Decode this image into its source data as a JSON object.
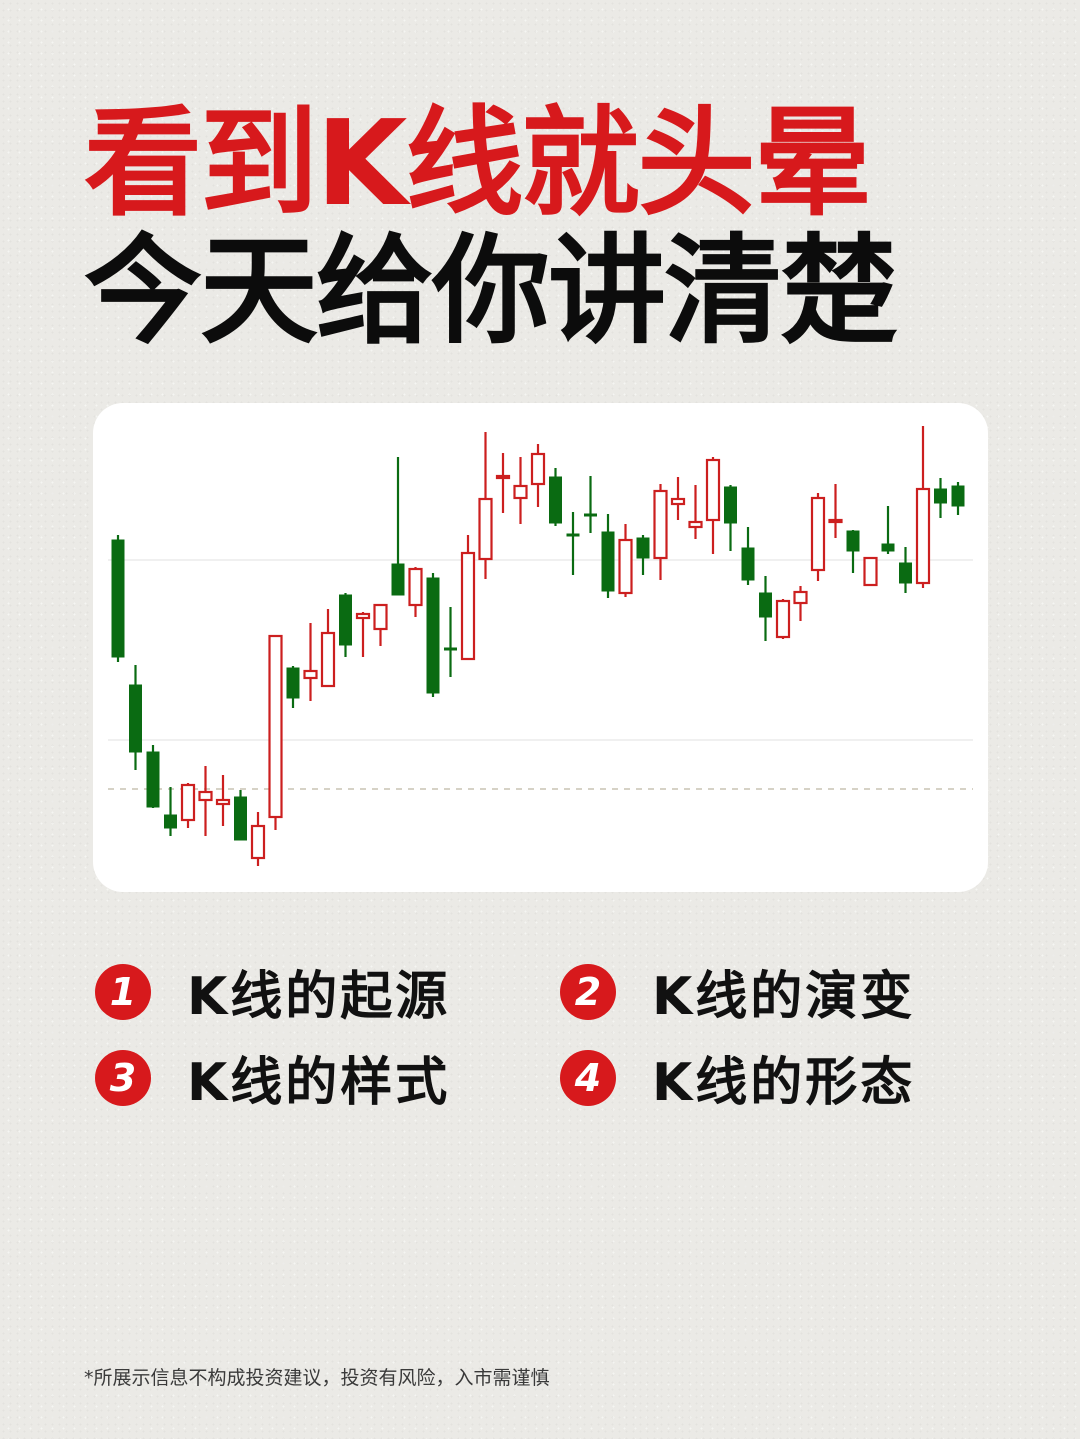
{
  "title": {
    "line1": "看到K线就头晕",
    "line2": "今天给你讲清楚"
  },
  "colors": {
    "accent_red": "#d7191c",
    "up": "#cc1f1f",
    "down": "#0a6b12",
    "text": "#0c0c0c"
  },
  "topics": [
    {
      "number": "1",
      "label": "K线的起源"
    },
    {
      "number": "2",
      "label": "K线的演变"
    },
    {
      "number": "3",
      "label": "K线的样式"
    },
    {
      "number": "4",
      "label": "K线的形态"
    }
  ],
  "footer": "*所展示信息不构成投资建议，投资有风险，入市需谨慎",
  "chart_data": {
    "type": "candlestick",
    "title": "",
    "xlabel": "",
    "ylabel": "",
    "axes_visible": false,
    "grid": "horizontal",
    "reference_line": "dashed",
    "up_style": "hollow red",
    "down_style": "filled green",
    "candles": [
      {
        "o": 36.0,
        "h": 36.5,
        "l": 23.8,
        "c": 24.3
      },
      {
        "o": 21.5,
        "h": 23.5,
        "l": 13.0,
        "c": 14.8
      },
      {
        "o": 14.8,
        "h": 15.5,
        "l": 9.2,
        "c": 9.3
      },
      {
        "o": 8.5,
        "h": 11.3,
        "l": 6.4,
        "c": 7.2
      },
      {
        "o": 8.0,
        "h": 11.7,
        "l": 7.2,
        "c": 11.5
      },
      {
        "o": 10.0,
        "h": 13.4,
        "l": 6.4,
        "c": 10.8
      },
      {
        "o": 9.6,
        "h": 12.5,
        "l": 7.4,
        "c": 10.0
      },
      {
        "o": 10.3,
        "h": 11.0,
        "l": 6.0,
        "c": 6.0
      },
      {
        "o": 4.2,
        "h": 8.8,
        "l": 3.4,
        "c": 7.4
      },
      {
        "o": 8.3,
        "h": 26.4,
        "l": 7.0,
        "c": 26.4
      },
      {
        "o": 23.2,
        "h": 23.4,
        "l": 19.2,
        "c": 20.2
      },
      {
        "o": 22.2,
        "h": 27.7,
        "l": 19.9,
        "c": 22.9
      },
      {
        "o": 21.4,
        "h": 29.1,
        "l": 21.4,
        "c": 26.7
      },
      {
        "o": 30.5,
        "h": 30.7,
        "l": 24.3,
        "c": 25.5
      },
      {
        "o": 28.2,
        "h": 28.8,
        "l": 24.3,
        "c": 28.6
      },
      {
        "o": 27.1,
        "h": 29.5,
        "l": 25.4,
        "c": 29.5
      },
      {
        "o": 33.6,
        "h": 44.3,
        "l": 30.5,
        "c": 30.5
      },
      {
        "o": 29.5,
        "h": 33.3,
        "l": 28.3,
        "c": 33.1
      },
      {
        "o": 32.2,
        "h": 32.7,
        "l": 20.3,
        "c": 20.7
      },
      {
        "o": 25.2,
        "h": 29.3,
        "l": 22.3,
        "c": 25.1
      },
      {
        "o": 24.1,
        "h": 36.5,
        "l": 24.1,
        "c": 34.7
      },
      {
        "o": 34.1,
        "h": 46.8,
        "l": 32.1,
        "c": 40.1
      },
      {
        "o": 42.3,
        "h": 44.7,
        "l": 38.7,
        "c": 42.4
      },
      {
        "o": 40.2,
        "h": 44.3,
        "l": 37.6,
        "c": 41.4
      },
      {
        "o": 41.6,
        "h": 45.6,
        "l": 39.3,
        "c": 44.6
      },
      {
        "o": 42.3,
        "h": 43.2,
        "l": 37.4,
        "c": 37.7
      },
      {
        "o": 36.6,
        "h": 38.8,
        "l": 32.5,
        "c": 36.5
      },
      {
        "o": 38.6,
        "h": 42.4,
        "l": 36.7,
        "c": 38.5
      },
      {
        "o": 36.8,
        "h": 38.6,
        "l": 30.2,
        "c": 30.9
      },
      {
        "o": 30.7,
        "h": 37.6,
        "l": 30.3,
        "c": 36.0
      },
      {
        "o": 36.2,
        "h": 36.5,
        "l": 32.5,
        "c": 34.2
      },
      {
        "o": 34.2,
        "h": 41.6,
        "l": 32.0,
        "c": 40.9
      },
      {
        "o": 39.6,
        "h": 42.3,
        "l": 38.0,
        "c": 40.1
      },
      {
        "o": 37.3,
        "h": 41.5,
        "l": 36.1,
        "c": 37.8
      },
      {
        "o": 38.0,
        "h": 44.3,
        "l": 34.6,
        "c": 44.0
      },
      {
        "o": 41.3,
        "h": 41.5,
        "l": 34.9,
        "c": 37.7
      },
      {
        "o": 35.2,
        "h": 37.3,
        "l": 31.5,
        "c": 32.0
      },
      {
        "o": 30.7,
        "h": 32.4,
        "l": 25.9,
        "c": 28.3
      },
      {
        "o": 26.3,
        "h": 30.1,
        "l": 26.1,
        "c": 29.9
      },
      {
        "o": 29.7,
        "h": 31.4,
        "l": 27.9,
        "c": 30.8
      },
      {
        "o": 33.0,
        "h": 40.7,
        "l": 31.9,
        "c": 40.2
      },
      {
        "o": 37.9,
        "h": 41.6,
        "l": 36.2,
        "c": 38.0
      },
      {
        "o": 36.9,
        "h": 37.0,
        "l": 32.7,
        "c": 34.9
      },
      {
        "o": 31.5,
        "h": 34.2,
        "l": 31.5,
        "c": 34.2
      },
      {
        "o": 35.6,
        "h": 39.4,
        "l": 34.6,
        "c": 34.9
      },
      {
        "o": 33.7,
        "h": 35.3,
        "l": 30.7,
        "c": 31.7
      },
      {
        "o": 31.7,
        "h": 47.4,
        "l": 31.2,
        "c": 41.1
      },
      {
        "o": 41.1,
        "h": 42.2,
        "l": 38.2,
        "c": 39.7
      },
      {
        "o": 41.4,
        "h": 41.8,
        "l": 38.5,
        "c": 39.4
      }
    ]
  }
}
